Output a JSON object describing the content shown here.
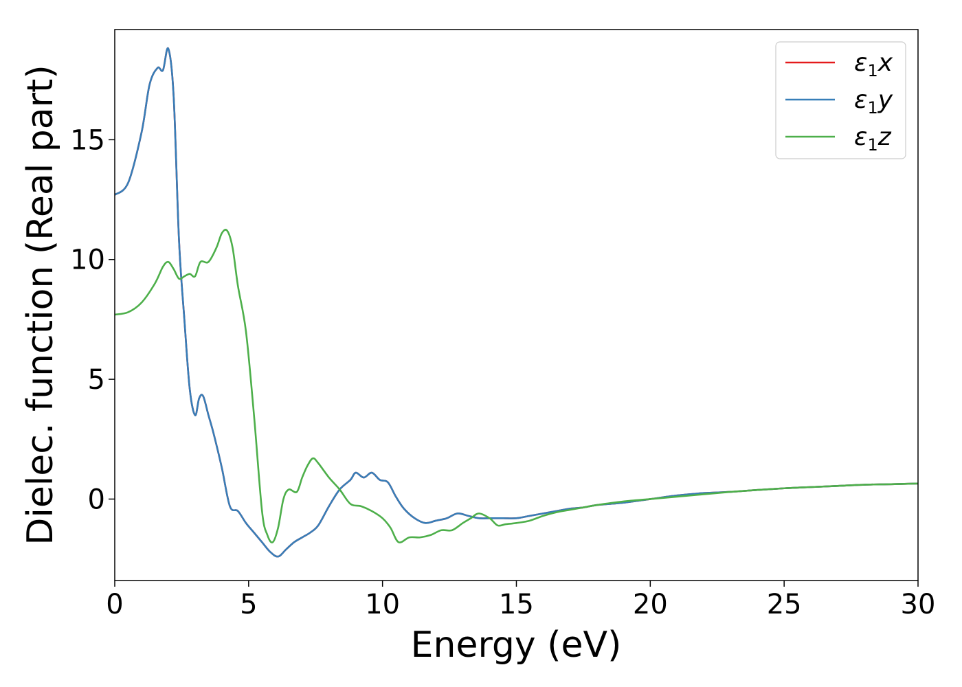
{
  "chart_data": {
    "type": "line",
    "title": "",
    "xlabel": "Energy (eV)",
    "ylabel": "Dielec. function (Real part)",
    "xlim": [
      0,
      30
    ],
    "ylim": [
      -3.4,
      19.6
    ],
    "xticks": [
      0,
      5,
      10,
      15,
      20,
      25,
      30
    ],
    "yticks": [
      0,
      5,
      10,
      15
    ],
    "grid": false,
    "legend": {
      "position": "top-right",
      "entries": [
        {
          "label_main": "ε",
          "label_sub": "1",
          "label_axis": "x",
          "color": "#e41a1c"
        },
        {
          "label_main": "ε",
          "label_sub": "1",
          "label_axis": "y",
          "color": "#377eb8"
        },
        {
          "label_main": "ε",
          "label_sub": "1",
          "label_axis": "z",
          "color": "#4daf4a"
        }
      ]
    },
    "series": [
      {
        "color": "#e41a1c",
        "x": [
          0,
          0.5,
          1.0,
          1.3,
          1.6,
          1.8,
          2.0,
          2.2,
          2.4,
          2.6,
          2.8,
          3.0,
          3.15,
          3.3,
          3.5,
          3.7,
          4.0,
          4.3,
          4.6,
          4.9,
          5.2,
          5.5,
          5.8,
          6.1,
          6.4,
          6.7,
          7.0,
          7.3,
          7.6,
          8.0,
          8.4,
          8.8,
          9.0,
          9.3,
          9.6,
          9.9,
          10.2,
          10.5,
          10.8,
          11.2,
          11.6,
          12.0,
          12.4,
          12.8,
          13.2,
          13.6,
          14.0,
          14.5,
          15.0,
          15.5,
          16.0,
          16.5,
          17.0,
          17.5,
          18.0,
          19.0,
          20.0,
          21.0,
          22.0,
          23.0,
          24.0,
          25.0,
          26.0,
          27.0,
          28.0,
          29.0,
          30.0
        ],
        "values": [
          12.7,
          13.2,
          15.3,
          17.3,
          18.0,
          17.9,
          18.8,
          16.8,
          10.8,
          7.5,
          4.6,
          3.5,
          4.2,
          4.3,
          3.5,
          2.7,
          1.3,
          -0.3,
          -0.5,
          -1.0,
          -1.4,
          -1.8,
          -2.2,
          -2.4,
          -2.1,
          -1.8,
          -1.6,
          -1.4,
          -1.1,
          -0.3,
          0.4,
          0.8,
          1.1,
          0.9,
          1.1,
          0.8,
          0.7,
          0.1,
          -0.4,
          -0.8,
          -1.0,
          -0.9,
          -0.8,
          -0.6,
          -0.7,
          -0.8,
          -0.8,
          -0.8,
          -0.8,
          -0.7,
          -0.6,
          -0.5,
          -0.4,
          -0.35,
          -0.25,
          -0.15,
          0.0,
          0.15,
          0.25,
          0.3,
          0.38,
          0.45,
          0.5,
          0.55,
          0.6,
          0.62,
          0.65
        ]
      },
      {
        "color": "#377eb8",
        "x": [
          0,
          0.5,
          1.0,
          1.3,
          1.6,
          1.8,
          2.0,
          2.2,
          2.4,
          2.6,
          2.8,
          3.0,
          3.15,
          3.3,
          3.5,
          3.7,
          4.0,
          4.3,
          4.6,
          4.9,
          5.2,
          5.5,
          5.8,
          6.1,
          6.4,
          6.7,
          7.0,
          7.3,
          7.6,
          8.0,
          8.4,
          8.8,
          9.0,
          9.3,
          9.6,
          9.9,
          10.2,
          10.5,
          10.8,
          11.2,
          11.6,
          12.0,
          12.4,
          12.8,
          13.2,
          13.6,
          14.0,
          14.5,
          15.0,
          15.5,
          16.0,
          16.5,
          17.0,
          17.5,
          18.0,
          19.0,
          20.0,
          21.0,
          22.0,
          23.0,
          24.0,
          25.0,
          26.0,
          27.0,
          28.0,
          29.0,
          30.0
        ],
        "values": [
          12.7,
          13.2,
          15.3,
          17.3,
          18.0,
          17.9,
          18.8,
          16.8,
          10.8,
          7.5,
          4.6,
          3.5,
          4.2,
          4.3,
          3.5,
          2.7,
          1.3,
          -0.3,
          -0.5,
          -1.0,
          -1.4,
          -1.8,
          -2.2,
          -2.4,
          -2.1,
          -1.8,
          -1.6,
          -1.4,
          -1.1,
          -0.3,
          0.4,
          0.8,
          1.1,
          0.9,
          1.1,
          0.8,
          0.7,
          0.1,
          -0.4,
          -0.8,
          -1.0,
          -0.9,
          -0.8,
          -0.6,
          -0.7,
          -0.8,
          -0.8,
          -0.8,
          -0.8,
          -0.7,
          -0.6,
          -0.5,
          -0.4,
          -0.35,
          -0.25,
          -0.15,
          0.0,
          0.15,
          0.25,
          0.3,
          0.38,
          0.45,
          0.5,
          0.55,
          0.6,
          0.62,
          0.65
        ]
      },
      {
        "color": "#4daf4a",
        "x": [
          0,
          0.5,
          1.0,
          1.5,
          1.8,
          2.0,
          2.2,
          2.4,
          2.6,
          2.8,
          3.0,
          3.2,
          3.5,
          3.8,
          4.0,
          4.2,
          4.4,
          4.6,
          4.9,
          5.2,
          5.5,
          5.7,
          5.9,
          6.1,
          6.3,
          6.5,
          6.8,
          7.0,
          7.2,
          7.4,
          7.6,
          8.0,
          8.4,
          8.8,
          9.2,
          9.6,
          10.0,
          10.3,
          10.6,
          11.0,
          11.4,
          11.8,
          12.2,
          12.6,
          13.0,
          13.3,
          13.6,
          14.0,
          14.3,
          14.6,
          15.0,
          15.5,
          16.0,
          16.5,
          17.0,
          17.5,
          18.0,
          19.0,
          20.0,
          21.0,
          22.0,
          23.0,
          24.0,
          25.0,
          26.0,
          27.0,
          28.0,
          29.0,
          30.0
        ],
        "values": [
          7.7,
          7.8,
          8.2,
          9.0,
          9.7,
          9.9,
          9.6,
          9.2,
          9.3,
          9.4,
          9.3,
          9.9,
          9.9,
          10.5,
          11.1,
          11.2,
          10.5,
          8.9,
          7.0,
          3.5,
          -0.5,
          -1.5,
          -1.8,
          -1.2,
          0.0,
          0.4,
          0.3,
          0.9,
          1.4,
          1.7,
          1.5,
          0.9,
          0.4,
          -0.2,
          -0.3,
          -0.5,
          -0.8,
          -1.2,
          -1.8,
          -1.6,
          -1.6,
          -1.5,
          -1.3,
          -1.3,
          -1.0,
          -0.8,
          -0.6,
          -0.8,
          -1.1,
          -1.05,
          -1.0,
          -0.9,
          -0.7,
          -0.55,
          -0.45,
          -0.35,
          -0.25,
          -0.1,
          0.0,
          0.1,
          0.2,
          0.3,
          0.38,
          0.45,
          0.5,
          0.55,
          0.6,
          0.62,
          0.65
        ]
      }
    ]
  }
}
